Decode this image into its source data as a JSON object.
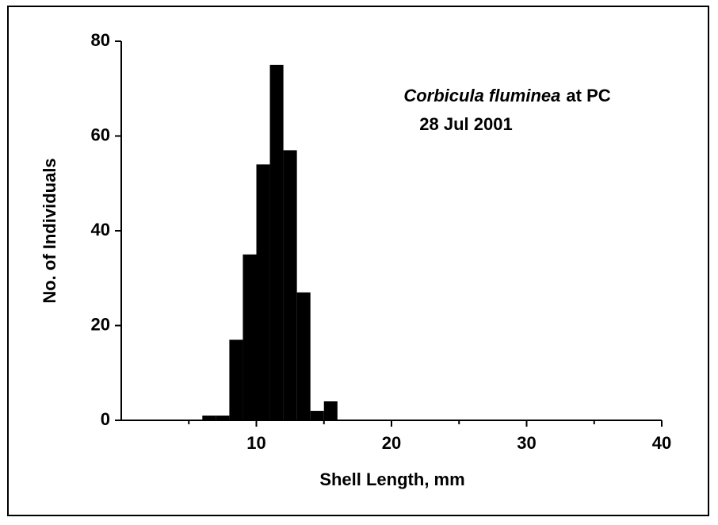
{
  "chart_data": {
    "type": "histogram",
    "title": [
      "Corbicula fluminea",
      "at PC"
    ],
    "subtitle": "28 Jul 2001",
    "x_label": "Shell Length, mm",
    "y_label": "No. of Individuals",
    "bins": [
      6,
      7,
      8,
      9,
      10,
      11,
      12,
      13,
      14,
      15,
      16
    ],
    "values": [
      1,
      1,
      17,
      35,
      54,
      75,
      57,
      27,
      2,
      4
    ],
    "color": "#000000",
    "xlim": [
      0,
      40
    ],
    "xticks": [
      10,
      20,
      30,
      40
    ],
    "xminorticks": [
      5,
      15,
      25,
      35
    ],
    "ylim": [
      0,
      80
    ],
    "yticks": [
      0,
      20,
      40,
      60,
      80
    ]
  }
}
